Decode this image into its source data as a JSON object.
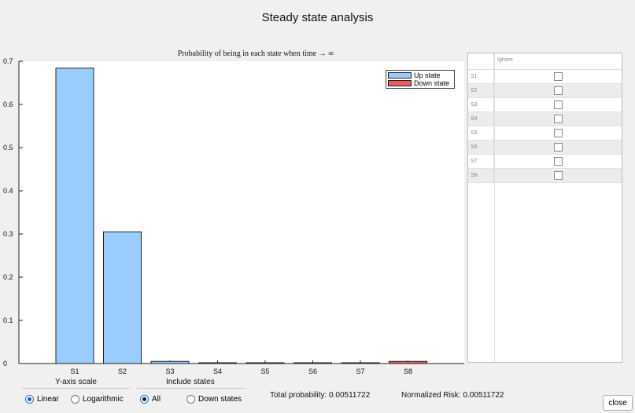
{
  "window": {
    "title": "Steady state analysis"
  },
  "chart_data": {
    "type": "bar",
    "title": "Probability of being in each state when time → ∞",
    "categories": [
      "S1",
      "S2",
      "S3",
      "S4",
      "S5",
      "S6",
      "S7",
      "S8"
    ],
    "series": [
      {
        "name": "Up state",
        "color": "#99ccff",
        "values": [
          0.684,
          0.305,
          0.005,
          0.0005,
          0.0003,
          0.0003,
          0.0003,
          null
        ]
      },
      {
        "name": "Down state",
        "color": "#f05a5a",
        "values": [
          null,
          null,
          null,
          null,
          null,
          null,
          null,
          0.005
        ]
      }
    ],
    "ylim": [
      0,
      0.7
    ],
    "yticks": [
      0,
      0.1,
      0.2,
      0.3,
      0.4,
      0.5,
      0.6,
      0.7
    ],
    "ytick_labels": [
      "0",
      "0.1",
      "0.2",
      "0.3",
      "0.4",
      "0.5",
      "0.6",
      "0.7"
    ],
    "xlabel": "",
    "ylabel": "",
    "grid": false,
    "legend_position": "top-right"
  },
  "table": {
    "column_header": "Ignore",
    "rows": [
      {
        "label": "S1",
        "checked": false
      },
      {
        "label": "S2",
        "checked": false
      },
      {
        "label": "S3",
        "checked": false
      },
      {
        "label": "S4",
        "checked": false
      },
      {
        "label": "S5",
        "checked": false
      },
      {
        "label": "S6",
        "checked": false
      },
      {
        "label": "S7",
        "checked": false
      },
      {
        "label": "S8",
        "checked": false
      }
    ]
  },
  "controls": {
    "y_axis_scale": {
      "label": "Y-axis scale",
      "options": [
        "Linear",
        "Logarithmic"
      ],
      "selected": "Linear"
    },
    "include_states": {
      "label": "Include states",
      "options": [
        "All",
        "Down states"
      ],
      "selected": "All"
    }
  },
  "stats": {
    "total_probability": "Total probability: 0.00511722",
    "normalized_risk": "Normalized Risk: 0.00511722"
  },
  "buttons": {
    "close": "close"
  }
}
